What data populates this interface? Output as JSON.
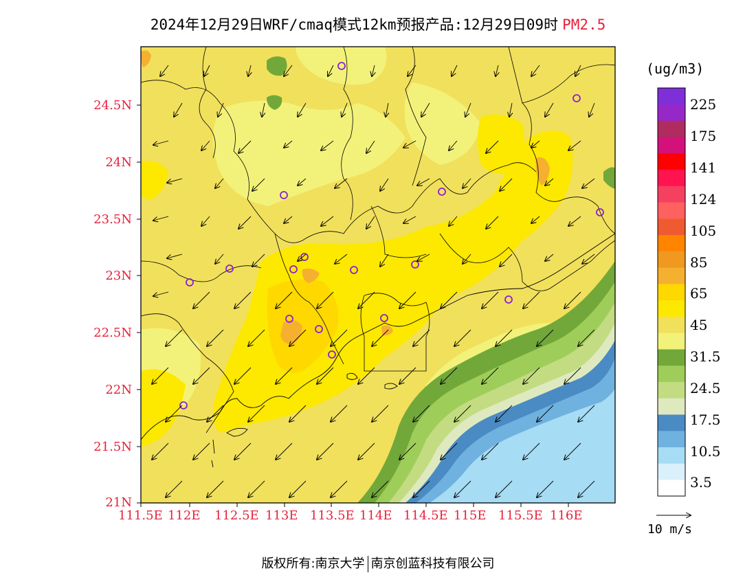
{
  "title": {
    "main": "2024年12月29日WRF/cmaq模式12km预报产品:12月29日09时",
    "variable": "PM2.5"
  },
  "axes": {
    "y_labels": [
      "24.5N",
      "24N",
      "23.5N",
      "23N",
      "22.5N",
      "22N",
      "21.5N",
      "21N"
    ],
    "x_labels": [
      "111.5E",
      "112E",
      "112.5E",
      "113E",
      "113.5E",
      "114E",
      "114.5E",
      "115E",
      "115.5E",
      "116E"
    ]
  },
  "legend": {
    "unit": "(ug/m3)",
    "labels": [
      "225",
      "175",
      "141",
      "124",
      "105",
      "85",
      "65",
      "45",
      "31.5",
      "24.5",
      "17.5",
      "10.5",
      "3.5"
    ],
    "colors": [
      "#ffffff",
      "#daf0fa",
      "#a6dcf4",
      "#6fb2e0",
      "#4a8bc4",
      "#dfe9c0",
      "#c3dc82",
      "#9fcd5a",
      "#72a83a",
      "#f2f27a",
      "#f1e05c",
      "#fde800",
      "#ffd800",
      "#f6b030",
      "#f09820",
      "#ff8400",
      "#ef5a30",
      "#ff6060",
      "#f54060",
      "#ff1450",
      "#ff0000",
      "#d4107a",
      "#b02c60",
      "#9628c8",
      "#7f2fd8"
    ]
  },
  "wind_vector_label": "10 m/s",
  "footer": {
    "left": "版权所有:南京大学",
    "right": "南京创蓝科技有限公司"
  },
  "map_colors": {
    "base": "#f1e05c",
    "light": "#f2f27a",
    "bright": "#fde800",
    "gold": "#ffd800",
    "orange": "#f6b030",
    "green_dark": "#72a83a",
    "green": "#9fcd5a",
    "green_light": "#c3dc82",
    "cream": "#dfe9c0",
    "blue": "#4a8bc4",
    "blue_mid": "#6fb2e0",
    "blue_light": "#a6dcf4",
    "station": "#8a1fd6",
    "axis_label": "#e8203a"
  }
}
